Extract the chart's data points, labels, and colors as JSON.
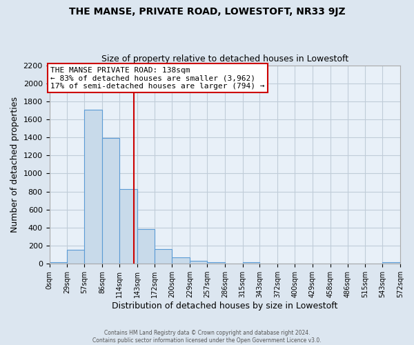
{
  "title": "THE MANSE, PRIVATE ROAD, LOWESTOFT, NR33 9JZ",
  "subtitle": "Size of property relative to detached houses in Lowestoft",
  "xlabel": "Distribution of detached houses by size in Lowestoft",
  "ylabel": "Number of detached properties",
  "bin_edges": [
    0,
    29,
    57,
    86,
    114,
    143,
    172,
    200,
    229,
    257,
    286,
    315,
    343,
    372,
    400,
    429,
    458,
    486,
    515,
    543,
    572
  ],
  "bin_counts": [
    20,
    155,
    1710,
    1390,
    825,
    385,
    165,
    70,
    30,
    20,
    0,
    20,
    0,
    0,
    0,
    0,
    0,
    0,
    0,
    15
  ],
  "bar_color": "#c8daea",
  "bar_edge_color": "#5b9bd5",
  "property_value": 138,
  "vline_color": "#cc0000",
  "annotation_title": "THE MANSE PRIVATE ROAD: 138sqm",
  "annotation_line1": "← 83% of detached houses are smaller (3,962)",
  "annotation_line2": "17% of semi-detached houses are larger (794) →",
  "annotation_box_color": "white",
  "annotation_box_edge": "#cc0000",
  "ylim": [
    0,
    2200
  ],
  "yticks": [
    0,
    200,
    400,
    600,
    800,
    1000,
    1200,
    1400,
    1600,
    1800,
    2000,
    2200
  ],
  "tick_labels": [
    "0sqm",
    "29sqm",
    "57sqm",
    "86sqm",
    "114sqm",
    "143sqm",
    "172sqm",
    "200sqm",
    "229sqm",
    "257sqm",
    "286sqm",
    "315sqm",
    "343sqm",
    "372sqm",
    "400sqm",
    "429sqm",
    "458sqm",
    "486sqm",
    "515sqm",
    "543sqm",
    "572sqm"
  ],
  "footer_line1": "Contains HM Land Registry data © Crown copyright and database right 2024.",
  "footer_line2": "Contains public sector information licensed under the Open Government Licence v3.0.",
  "background_color": "#dce6f0",
  "plot_background": "#e8f0f8",
  "grid_color": "#c0ccd8",
  "title_fontsize": 10,
  "subtitle_fontsize": 9,
  "annot_fontsize": 8
}
